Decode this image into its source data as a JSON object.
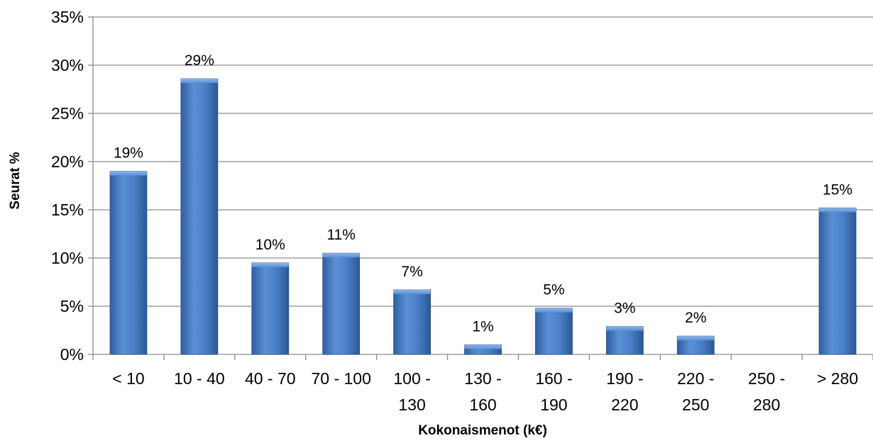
{
  "chart_data": {
    "type": "bar",
    "title": "",
    "xlabel": "Kokonaismenot (k€)",
    "ylabel": "Seurat %",
    "ylim": [
      0,
      35
    ],
    "y_ticks": [
      "0%",
      "5%",
      "10%",
      "15%",
      "20%",
      "25%",
      "30%",
      "35%"
    ],
    "grid": true,
    "legend": "none",
    "categories": [
      [
        "< 10"
      ],
      [
        "10 - 40"
      ],
      [
        "40 - 70"
      ],
      [
        "70 - 100"
      ],
      [
        "100 -",
        "130"
      ],
      [
        "130 -",
        "160"
      ],
      [
        "160 -",
        "190"
      ],
      [
        "190 -",
        "220"
      ],
      [
        "220 -",
        "250"
      ],
      [
        "250 -",
        "280"
      ],
      [
        "> 280"
      ]
    ],
    "values": [
      19,
      28.6,
      9.5,
      10.5,
      6.7,
      1.0,
      4.8,
      2.9,
      1.9,
      0,
      15.2
    ],
    "data_labels": [
      "19%",
      "29%",
      "10%",
      "11%",
      "7%",
      "1%",
      "5%",
      "3%",
      "2%",
      "",
      "15%"
    ],
    "bar_color": "#4a7fc4"
  }
}
